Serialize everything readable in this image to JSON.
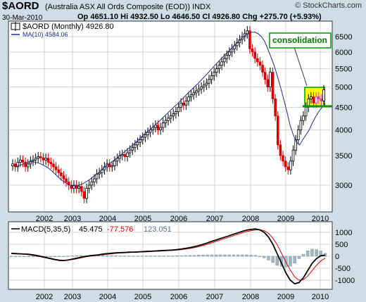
{
  "header": {
    "ticker": "$AORD",
    "description": "(Australia ASX All Ords Composite (EOD)) INDX",
    "brand": "© StockCharts.com",
    "date": "30-Mar-2010",
    "ohlc": "Op 4651.10  Hi 4932.50  Lo 4646.50  Cl 4926.80  Chg +275.70 (+5.93%)"
  },
  "price_legend": {
    "series_label": "$AORD (Monthly) 4926.80",
    "ma_label": "MA(10) 4584.06"
  },
  "macd_legend": {
    "label": "MACD(5,35,5)",
    "macd_value": "45.475",
    "signal_value": "-77.576",
    "hist_value": "123.051"
  },
  "annotation": {
    "text": "consolidation"
  },
  "colors": {
    "background": "#cfdde7",
    "panel": "#ffffff",
    "up_candle": "#000000",
    "down_candle": "#e00000",
    "ma_line": "#1f2a8c",
    "macd_line": "#000000",
    "signal_line": "#e00000",
    "histogram": "#9fb7c4",
    "annotation_border": "#009900",
    "highlight_box": "#ffff00",
    "highlight_candles": "#cc33cc",
    "support_line": "#009900"
  },
  "chart_data": [
    {
      "type": "candlestick",
      "title": "$AORD (Australia ASX All Ords Composite (EOD)) INDX",
      "x_tick_labels": [
        "2002",
        "2003",
        "2004",
        "2005",
        "2006",
        "2007",
        "2008",
        "2009",
        "2010"
      ],
      "y_tick_labels": [
        "3000",
        "3500",
        "4000",
        "4500",
        "5000",
        "5500",
        "6000",
        "6500"
      ],
      "y_scale": "log",
      "ylim": [
        2600,
        7000
      ],
      "grid": true,
      "close_series_approx": [
        3350,
        3300,
        3380,
        3420,
        3380,
        3300,
        3350,
        3400,
        3420,
        3450,
        3480,
        3460,
        3420,
        3450,
        3380,
        3350,
        3300,
        3250,
        3200,
        3150,
        3100,
        3050,
        3000,
        2950,
        3000,
        2950,
        2980,
        2900,
        2800,
        2950,
        3000,
        3050,
        3100,
        3180,
        3200,
        3250,
        3300,
        3350,
        3300,
        3320,
        3400,
        3450,
        3500,
        3520,
        3480,
        3550,
        3600,
        3650,
        3700,
        3750,
        3800,
        3850,
        3900,
        3950,
        4000,
        4050,
        4100,
        4000,
        4050,
        4150,
        4200,
        4250,
        4300,
        4350,
        4400,
        4500,
        4600,
        4550,
        4650,
        4750,
        4800,
        4850,
        4900,
        4950,
        5000,
        5050,
        5100,
        5200,
        5300,
        5400,
        5500,
        5600,
        5700,
        5800,
        5900,
        6000,
        6100,
        6200,
        6300,
        6400,
        6500,
        6600,
        6700,
        6100,
        6000,
        5800,
        5700,
        5600,
        5400,
        5200,
        5000,
        5400,
        4700,
        4300,
        3700,
        3500,
        3400,
        3300,
        3250,
        3400,
        3600,
        3800,
        4000,
        4200,
        4300,
        4500,
        4700,
        4750,
        4600,
        4750,
        4700,
        4650,
        4930
      ],
      "series": [
        {
          "name": "MA(10)",
          "values": [
            3300,
            3320,
            3340,
            3360,
            3380,
            3390,
            3380,
            3370,
            3350,
            3320,
            3290,
            3250,
            3200,
            3150,
            3100,
            3060,
            3030,
            3000,
            2990,
            2990,
            3000,
            3020,
            3050,
            3080,
            3120,
            3160,
            3200,
            3250,
            3300,
            3340,
            3380,
            3420,
            3460,
            3510,
            3560,
            3610,
            3660,
            3710,
            3770,
            3830,
            3890,
            3950,
            4000,
            4060,
            4120,
            4180,
            4250,
            4320,
            4390,
            4460,
            4530,
            4600,
            4680,
            4760,
            4840,
            4920,
            5000,
            5080,
            5170,
            5260,
            5350,
            5450,
            5550,
            5650,
            5750,
            5850,
            5950,
            6050,
            6150,
            6250,
            6350,
            6450,
            6550,
            6600,
            6650,
            6650,
            6600,
            6500,
            6350,
            6100,
            5850,
            5600,
            5300,
            5000,
            4700,
            4400,
            4100,
            3900,
            3750,
            3700,
            3800,
            3900,
            4000,
            4150,
            4280,
            4400,
            4500,
            4584
          ]
        }
      ],
      "annotations": [
        "consolidation"
      ]
    },
    {
      "type": "line",
      "title": "MACD(5,35,5)",
      "x_tick_labels": [
        "2002",
        "2003",
        "2004",
        "2005",
        "2006",
        "2007",
        "2008",
        "2009",
        "2010"
      ],
      "y_tick_labels": [
        "1000",
        "500",
        "0",
        "-500",
        "-1000"
      ],
      "ylim": [
        -1150,
        1150
      ],
      "grid": true,
      "series": [
        {
          "name": "MACD",
          "values": [
            120,
            110,
            100,
            90,
            80,
            50,
            20,
            -20,
            -60,
            -100,
            -140,
            -170,
            -180,
            -160,
            -120,
            -80,
            -40,
            -10,
            20,
            40,
            60,
            90,
            110,
            130,
            140,
            150,
            160,
            170,
            175,
            180,
            190,
            200,
            210,
            220,
            230,
            240,
            250,
            260,
            280,
            300,
            330,
            360,
            400,
            450,
            500,
            560,
            620,
            680,
            740,
            800,
            860,
            920,
            980,
            1040,
            1090,
            1120,
            1140,
            1100,
            1000,
            800,
            500,
            100,
            -300,
            -700,
            -1000,
            -1150,
            -1100,
            -900,
            -600,
            -300,
            -100,
            20,
            45.475
          ]
        },
        {
          "name": "Signal",
          "values": [
            130,
            120,
            110,
            100,
            90,
            70,
            40,
            0,
            -40,
            -80,
            -120,
            -150,
            -165,
            -165,
            -140,
            -110,
            -70,
            -30,
            0,
            20,
            40,
            60,
            80,
            100,
            120,
            135,
            145,
            155,
            165,
            170,
            178,
            186,
            195,
            205,
            215,
            225,
            235,
            245,
            260,
            275,
            300,
            325,
            360,
            400,
            450,
            500,
            560,
            620,
            680,
            740,
            800,
            860,
            920,
            980,
            1030,
            1070,
            1100,
            1110,
            1070,
            960,
            760,
            480,
            120,
            -250,
            -580,
            -860,
            -1000,
            -980,
            -830,
            -600,
            -380,
            -200,
            -77.576
          ]
        },
        {
          "name": "Histogram",
          "values": [
            -10,
            -10,
            -10,
            -10,
            -10,
            -20,
            -20,
            -20,
            -20,
            -20,
            -20,
            -20,
            -15,
            5,
            20,
            30,
            30,
            20,
            20,
            20,
            20,
            30,
            30,
            30,
            20,
            15,
            15,
            15,
            10,
            10,
            12,
            14,
            15,
            15,
            15,
            15,
            15,
            15,
            20,
            25,
            30,
            35,
            40,
            50,
            50,
            60,
            60,
            60,
            60,
            60,
            60,
            60,
            60,
            60,
            60,
            50,
            40,
            -10,
            -70,
            -160,
            -260,
            -380,
            -420,
            -450,
            -420,
            -290,
            -100,
            80,
            230,
            300,
            280,
            220,
            123.051
          ]
        }
      ]
    }
  ]
}
